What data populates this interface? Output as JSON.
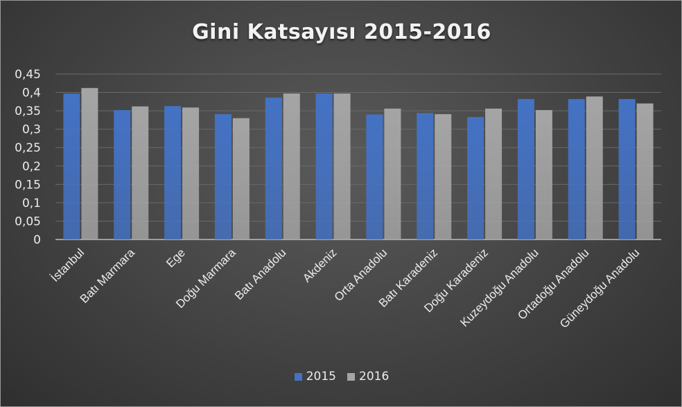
{
  "chart_data": {
    "type": "bar",
    "title": "Gini Katsayısı 2015-2016",
    "xlabel": "",
    "ylabel": "",
    "ylim": [
      0,
      0.45
    ],
    "y_ticks": [
      "0",
      "0,05",
      "0,1",
      "0,15",
      "0,2",
      "0,25",
      "0,3",
      "0,35",
      "0,4",
      "0,45"
    ],
    "grid": true,
    "legend": "bottom",
    "categories": [
      "İstanbul",
      "Batı Marmara",
      "Ege",
      "Doğu Marmara",
      "Batı Anadolu",
      "Akdeniz",
      "Orta Anadolu",
      "Batı Karadeniz",
      "Doğu Karadeniz",
      "Kuzeydoğu Anadolu",
      "Ortadoğu Anadolu",
      "Güneydoğu Anadolu"
    ],
    "series": [
      {
        "name": "2015",
        "color": "#4472c4",
        "values": [
          0.397,
          0.352,
          0.363,
          0.341,
          0.386,
          0.397,
          0.34,
          0.344,
          0.333,
          0.382,
          0.382,
          0.382
        ]
      },
      {
        "name": "2016",
        "color": "#a5a5a5",
        "values": [
          0.412,
          0.362,
          0.359,
          0.33,
          0.397,
          0.397,
          0.356,
          0.341,
          0.356,
          0.352,
          0.389,
          0.37
        ]
      }
    ]
  }
}
